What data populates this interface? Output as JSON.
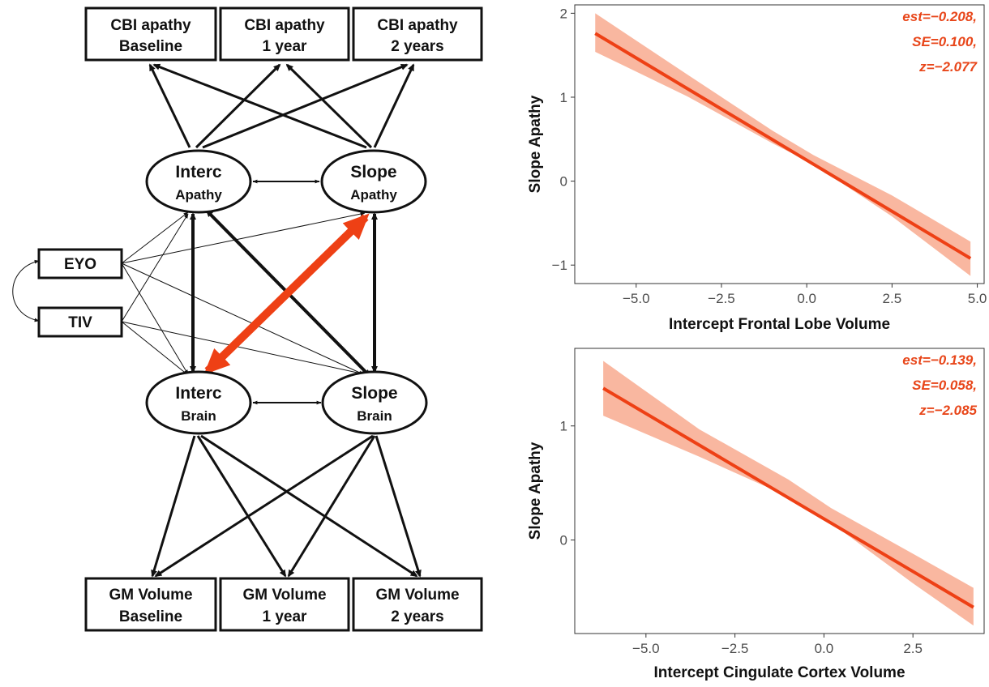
{
  "diagram": {
    "boxes": {
      "cbi_baseline": [
        "CBI apathy",
        "Baseline"
      ],
      "cbi_1year": [
        "CBI apathy",
        "1 year"
      ],
      "cbi_2years": [
        "CBI apathy",
        "2 years"
      ],
      "gm_baseline": [
        "GM Volume",
        "Baseline"
      ],
      "gm_1year": [
        "GM Volume",
        "1 year"
      ],
      "gm_2years": [
        "GM Volume",
        "2 years"
      ],
      "eyo": "EYO",
      "tiv": "TIV"
    },
    "ellipses": {
      "interc_apathy": [
        "Interc",
        "Apathy"
      ],
      "slope_apathy": [
        "Slope",
        "Apathy"
      ],
      "interc_brain": [
        "Interc",
        "Brain"
      ],
      "slope_brain": [
        "Slope",
        "Brain"
      ]
    },
    "highlight_color": "#ee4015"
  },
  "chart_data": [
    {
      "type": "line",
      "x_label": "Intercept Frontal Lobe Volume",
      "y_label": "Slope Apathy",
      "x_ticks": [
        "−5.0",
        "−2.5",
        "0.0",
        "2.5",
        "5.0"
      ],
      "y_ticks": [
        "−1",
        "0",
        "1",
        "2"
      ],
      "xlim": [
        -6.8,
        5.2
      ],
      "ylim": [
        -1.22,
        2.1
      ],
      "line": {
        "x": [
          -6.2,
          4.8
        ],
        "y": [
          1.76,
          -0.92
        ]
      },
      "band_upper": [
        [
          -6.2,
          2.0
        ],
        [
          -3.5,
          1.27
        ],
        [
          -1.0,
          0.6
        ],
        [
          0.2,
          0.31
        ],
        [
          2.5,
          -0.17
        ],
        [
          4.8,
          -0.72
        ]
      ],
      "band_lower": [
        [
          -6.2,
          1.54
        ],
        [
          -3.5,
          1.01
        ],
        [
          -1.0,
          0.45
        ],
        [
          0.2,
          0.2
        ],
        [
          2.5,
          -0.42
        ],
        [
          4.8,
          -1.13
        ]
      ],
      "annotation": [
        "est=−0.208,",
        "SE=0.100,",
        "z=−2.077"
      ],
      "line_color": "#ee4015",
      "band_color": "#f9b7a0"
    },
    {
      "type": "line",
      "x_label": "Intercept Cingulate Cortex Volume",
      "y_label": "Slope Apathy",
      "x_ticks": [
        "−5.0",
        "−2.5",
        "0.0",
        "2.5"
      ],
      "y_ticks": [
        "0",
        "1"
      ],
      "xlim": [
        -7.0,
        4.5
      ],
      "ylim": [
        -0.82,
        1.68
      ],
      "line": {
        "x": [
          -6.2,
          4.2
        ],
        "y": [
          1.33,
          -0.59
        ]
      },
      "band_upper": [
        [
          -6.2,
          1.57
        ],
        [
          -3.5,
          0.97
        ],
        [
          -1.0,
          0.53
        ],
        [
          0.2,
          0.28
        ],
        [
          2.5,
          -0.12
        ],
        [
          4.2,
          -0.42
        ]
      ],
      "band_lower": [
        [
          -6.2,
          1.09
        ],
        [
          -3.5,
          0.73
        ],
        [
          -1.0,
          0.38
        ],
        [
          0.2,
          0.15
        ],
        [
          2.5,
          -0.38
        ],
        [
          4.2,
          -0.75
        ]
      ],
      "annotation": [
        "est=−0.139,",
        "SE=0.058,",
        "z=−2.085"
      ],
      "line_color": "#ee4015",
      "band_color": "#f9b7a0"
    }
  ]
}
